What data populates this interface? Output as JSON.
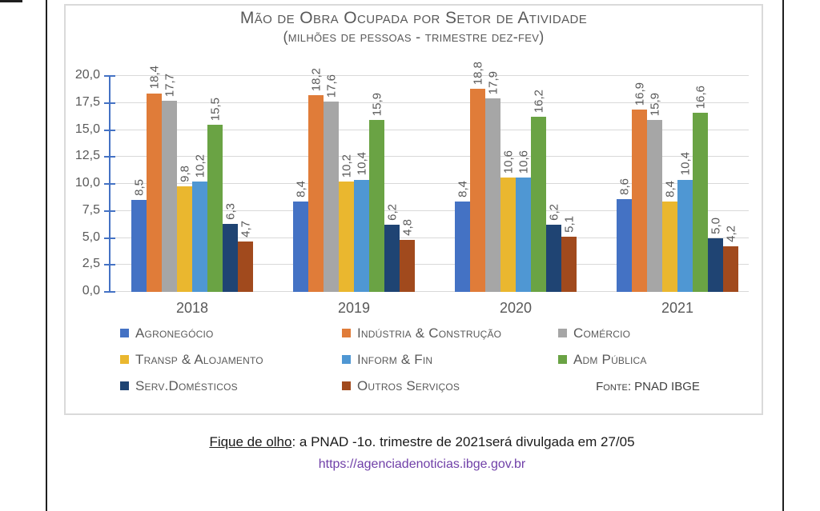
{
  "chart": {
    "title": "Mão de Obra Ocupada por Setor de Atividade",
    "subtitle": "(milhões de pessoas - trimestre dez-fev)"
  },
  "chart_data": {
    "type": "bar",
    "title": "Mão de Obra Ocupada por Setor de Atividade (milhões de pessoas - trimestre dez-fev)",
    "categories": [
      "2018",
      "2019",
      "2020",
      "2021"
    ],
    "series": [
      {
        "name": "Agronegócio",
        "color": "#4472C4",
        "values": [
          8.5,
          8.4,
          8.4,
          8.6
        ],
        "labels": [
          "8,5",
          "8,4",
          "8,4",
          "8,6"
        ]
      },
      {
        "name": "Indústria & Construção",
        "color": "#E07C39",
        "values": [
          18.4,
          18.2,
          18.8,
          16.9
        ],
        "labels": [
          "18,4",
          "18,2",
          "18,8",
          "16,9"
        ]
      },
      {
        "name": "Comércio",
        "color": "#A6A6A6",
        "values": [
          17.7,
          17.6,
          17.9,
          15.9
        ],
        "labels": [
          "17,7",
          "17,6",
          "17,9",
          "15,9"
        ]
      },
      {
        "name": "Transp & Alojamento",
        "color": "#EAB72F",
        "values": [
          9.8,
          10.2,
          10.6,
          8.4
        ],
        "labels": [
          "9,8",
          "10,2",
          "10,6",
          "8,4"
        ]
      },
      {
        "name": "Inform & Fin",
        "color": "#4F97D3",
        "values": [
          10.2,
          10.4,
          10.6,
          10.4
        ],
        "labels": [
          "10,2",
          "10,4",
          "10,6",
          "10,4"
        ]
      },
      {
        "name": "Adm Pública",
        "color": "#6AA344",
        "values": [
          15.5,
          15.9,
          16.2,
          16.6
        ],
        "labels": [
          "15,5",
          "15,9",
          "16,2",
          "16,6"
        ]
      },
      {
        "name": "Serv.Domésticos",
        "color": "#1F4473",
        "values": [
          6.3,
          6.2,
          6.2,
          5.0
        ],
        "labels": [
          "6,3",
          "6,2",
          "6,2",
          "5,0"
        ]
      },
      {
        "name": "Outros Serviços",
        "color": "#A14A1D",
        "values": [
          4.7,
          4.8,
          5.1,
          4.2
        ],
        "labels": [
          "4,7",
          "4,8",
          "5,1",
          "4,2"
        ]
      }
    ],
    "ylim": [
      0,
      20
    ],
    "yticks": [
      "20,0",
      "17,5",
      "15,0",
      "12,5",
      "10,0",
      "7,5",
      "5,0",
      "2,5",
      "0,0"
    ],
    "grid": true,
    "legend_position": "bottom",
    "axis_color": "#4472C4",
    "gridline_color": "#D9D9D9",
    "text_color": "#595959"
  },
  "source": "Fonte: PNAD IBGE",
  "footer": {
    "highlight": "Fique de olho",
    "rest": ": a PNAD -1o. trimestre de 2021será divulgada em 27/05",
    "link": "https://agenciadenoticias.ibge.gov.br"
  }
}
